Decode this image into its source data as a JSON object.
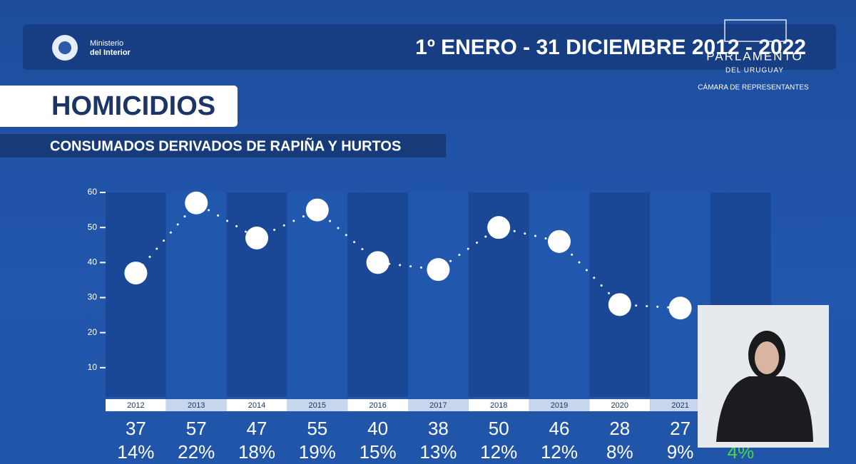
{
  "header": {
    "ministry_line1": "Ministerio",
    "ministry_line2": "del Interior",
    "period": "1º ENERO - 31 DICIEMBRE 2012 - 2022",
    "parliament": "PARLAMENTO",
    "parliament_sub": "DEL URUGUAY",
    "chamber": "CÁMARA DE REPRESENTANTES"
  },
  "chart_data": {
    "type": "line",
    "title": "HOMICIDIOS",
    "subtitle": "CONSUMADOS DERIVADOS DE RAPIÑA Y HURTOS",
    "categories": [
      "2012",
      "2013",
      "2014",
      "2015",
      "2016",
      "2017",
      "2018",
      "2019",
      "2020",
      "2021",
      null
    ],
    "values": [
      37,
      57,
      47,
      55,
      40,
      38,
      50,
      46,
      28,
      27,
      null
    ],
    "shares": [
      "14%",
      "22%",
      "18%",
      "19%",
      "15%",
      "13%",
      "12%",
      "12%",
      "8%",
      "9%",
      "4%"
    ],
    "color": "#ffffff",
    "ylim": [
      0,
      60
    ],
    "yticks": [
      10,
      20,
      30,
      40,
      50,
      60
    ]
  }
}
